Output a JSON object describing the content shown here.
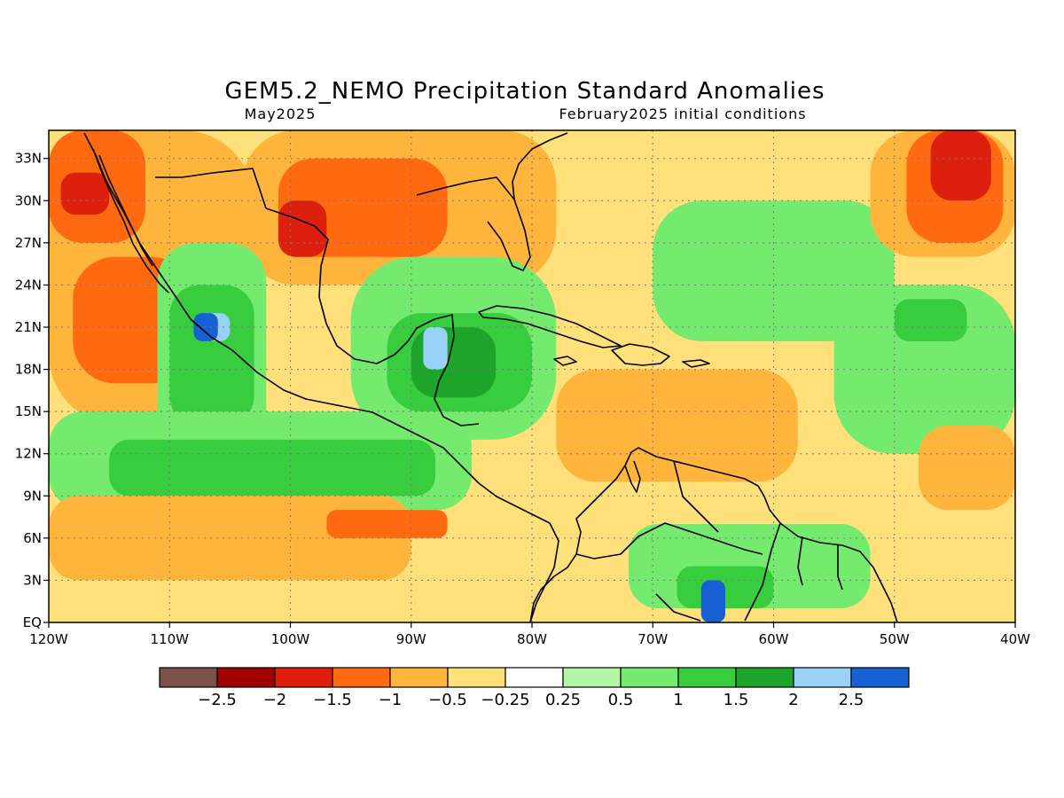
{
  "title": "GEM5.2_NEMO Precipitation Standard Anomalies",
  "subtitle_left": "May2025",
  "subtitle_right": "February2025 initial conditions",
  "map": {
    "lon_range": [
      -120,
      -40
    ],
    "lat_range": [
      0,
      35
    ],
    "lon_ticks": [
      {
        "value": -120,
        "label": "120W"
      },
      {
        "value": -110,
        "label": "110W"
      },
      {
        "value": -100,
        "label": "100W"
      },
      {
        "value": -90,
        "label": "90W"
      },
      {
        "value": -80,
        "label": "80W"
      },
      {
        "value": -70,
        "label": "70W"
      },
      {
        "value": -60,
        "label": "60W"
      },
      {
        "value": -50,
        "label": "50W"
      },
      {
        "value": -40,
        "label": "40W"
      }
    ],
    "lat_ticks": [
      {
        "value": 0,
        "label": "EQ"
      },
      {
        "value": 3,
        "label": "3N"
      },
      {
        "value": 6,
        "label": "6N"
      },
      {
        "value": 9,
        "label": "9N"
      },
      {
        "value": 12,
        "label": "12N"
      },
      {
        "value": 15,
        "label": "15N"
      },
      {
        "value": 18,
        "label": "18N"
      },
      {
        "value": 21,
        "label": "21N"
      },
      {
        "value": 24,
        "label": "24N"
      },
      {
        "value": 27,
        "label": "27N"
      },
      {
        "value": 30,
        "label": "30N"
      },
      {
        "value": 33,
        "label": "33N"
      }
    ]
  },
  "colorbar": {
    "colors": [
      "#7b5247",
      "#a00000",
      "#dd1f0e",
      "#ff6a10",
      "#ffb43c",
      "#ffe07a",
      "#ffffff",
      "#b4f5a5",
      "#74ea6e",
      "#38cd3e",
      "#1ca52a",
      "#98d2f8",
      "#1560d2"
    ],
    "labels": [
      "−2.5",
      "−2",
      "−1.5",
      "−1",
      "−0.5",
      "−0.25",
      "0.25",
      "0.5",
      "1",
      "1.5",
      "2",
      "2.5"
    ]
  },
  "anomaly_regions": [
    {
      "cls": -0.25,
      "lon": [
        -120,
        -40
      ],
      "lat": [
        0,
        35
      ]
    },
    {
      "cls": -0.5,
      "lon": [
        -120,
        -103
      ],
      "lat": [
        14,
        35
      ]
    },
    {
      "cls": -1.0,
      "lon": [
        -118,
        -108
      ],
      "lat": [
        17,
        26
      ]
    },
    {
      "cls": -1.0,
      "lon": [
        -120,
        -112
      ],
      "lat": [
        27,
        35
      ]
    },
    {
      "cls": -1.5,
      "lon": [
        -119,
        -115
      ],
      "lat": [
        29,
        32
      ]
    },
    {
      "cls": -0.5,
      "lon": [
        -104,
        -78
      ],
      "lat": [
        24,
        35
      ]
    },
    {
      "cls": -1.0,
      "lon": [
        -101,
        -87
      ],
      "lat": [
        26,
        33
      ]
    },
    {
      "cls": -1.5,
      "lon": [
        -101,
        -97
      ],
      "lat": [
        26,
        30
      ]
    },
    {
      "cls": 0.5,
      "lon": [
        -111,
        -102
      ],
      "lat": [
        12,
        27
      ]
    },
    {
      "cls": 1.0,
      "lon": [
        -110,
        -103
      ],
      "lat": [
        14,
        24
      ]
    },
    {
      "cls": 2.0,
      "lon": [
        -108,
        -105
      ],
      "lat": [
        20,
        22
      ]
    },
    {
      "cls": 2.5,
      "lon": [
        -108,
        -106
      ],
      "lat": [
        20,
        22
      ]
    },
    {
      "cls": 0.5,
      "lon": [
        -95,
        -78
      ],
      "lat": [
        13,
        26
      ]
    },
    {
      "cls": 1.0,
      "lon": [
        -92,
        -80
      ],
      "lat": [
        15,
        22
      ]
    },
    {
      "cls": 1.5,
      "lon": [
        -90,
        -83
      ],
      "lat": [
        16,
        21
      ]
    },
    {
      "cls": 2.0,
      "lon": [
        -89,
        -87
      ],
      "lat": [
        18,
        21
      ]
    },
    {
      "cls": 0.5,
      "lon": [
        -120,
        -85
      ],
      "lat": [
        8,
        15
      ]
    },
    {
      "cls": 1.0,
      "lon": [
        -115,
        -88
      ],
      "lat": [
        9,
        13
      ]
    },
    {
      "cls": -0.5,
      "lon": [
        -120,
        -90
      ],
      "lat": [
        3,
        9
      ]
    },
    {
      "cls": -1.0,
      "lon": [
        -97,
        -87
      ],
      "lat": [
        6,
        8
      ]
    },
    {
      "cls": -0.5,
      "lon": [
        -78,
        -58
      ],
      "lat": [
        10,
        18
      ]
    },
    {
      "cls": 0.5,
      "lon": [
        -72,
        -52
      ],
      "lat": [
        1,
        7
      ]
    },
    {
      "cls": 1.0,
      "lon": [
        -68,
        -60
      ],
      "lat": [
        1,
        4
      ]
    },
    {
      "cls": 2.5,
      "lon": [
        -66,
        -64
      ],
      "lat": [
        0,
        3
      ]
    },
    {
      "cls": 0.5,
      "lon": [
        -70,
        -50
      ],
      "lat": [
        20,
        30
      ]
    },
    {
      "cls": 0.5,
      "lon": [
        -55,
        -40
      ],
      "lat": [
        12,
        24
      ]
    },
    {
      "cls": 1.0,
      "lon": [
        -50,
        -44
      ],
      "lat": [
        20,
        23
      ]
    },
    {
      "cls": -0.5,
      "lon": [
        -52,
        -40
      ],
      "lat": [
        26,
        35
      ]
    },
    {
      "cls": -1.0,
      "lon": [
        -49,
        -41
      ],
      "lat": [
        27,
        35
      ]
    },
    {
      "cls": -1.5,
      "lon": [
        -47,
        -42
      ],
      "lat": [
        30,
        35
      ]
    },
    {
      "cls": -0.5,
      "lon": [
        -48,
        -40
      ],
      "lat": [
        8,
        14
      ]
    }
  ]
}
